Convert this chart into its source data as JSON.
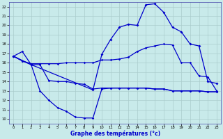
{
  "xlabel": "Graphe des températures (°c)",
  "bg_color": "#c8eaea",
  "grid_color": "#aacccc",
  "line_color": "#0000cc",
  "xlim": [
    -0.5,
    23.5
  ],
  "ylim": [
    9.5,
    22.5
  ],
  "yticks": [
    10,
    11,
    12,
    13,
    14,
    15,
    16,
    17,
    18,
    19,
    20,
    21,
    22
  ],
  "xticks": [
    0,
    1,
    2,
    3,
    4,
    5,
    6,
    7,
    8,
    9,
    10,
    11,
    12,
    13,
    14,
    15,
    16,
    17,
    18,
    19,
    20,
    21,
    22,
    23
  ],
  "line1_x": [
    0,
    1,
    2,
    3,
    4,
    5,
    6,
    7,
    8,
    9,
    10,
    11,
    12,
    13,
    14,
    15,
    16,
    17,
    18,
    19,
    20,
    21,
    22,
    23
  ],
  "line1_y": [
    16.7,
    17.2,
    15.8,
    13.0,
    12.0,
    11.2,
    10.8,
    10.2,
    10.1,
    10.1,
    13.2,
    13.3,
    13.3,
    13.3,
    13.3,
    13.3,
    13.2,
    13.2,
    13.0,
    13.0,
    13.0,
    13.0,
    12.9,
    12.9
  ],
  "line2_x": [
    0,
    1,
    2,
    3,
    4,
    5,
    6,
    7,
    8,
    9,
    10,
    11,
    12,
    13,
    14,
    15,
    16,
    17,
    18,
    19,
    20,
    21,
    22,
    23
  ],
  "line2_y": [
    16.7,
    16.2,
    15.8,
    15.8,
    14.1,
    14.0,
    14.0,
    13.8,
    13.7,
    13.2,
    13.3,
    13.3,
    13.3,
    13.3,
    13.3,
    13.3,
    13.2,
    13.2,
    13.0,
    13.0,
    13.0,
    13.0,
    12.9,
    12.9
  ],
  "line3_x": [
    0,
    1,
    2,
    3,
    4,
    5,
    6,
    7,
    8,
    9,
    10,
    11,
    12,
    13,
    14,
    15,
    16,
    17,
    18,
    19,
    20,
    21,
    22,
    23
  ],
  "line3_y": [
    16.7,
    16.2,
    15.9,
    15.9,
    15.9,
    15.9,
    16.0,
    16.0,
    16.0,
    16.0,
    16.3,
    16.3,
    16.4,
    16.6,
    17.2,
    17.6,
    17.8,
    18.0,
    17.9,
    16.0,
    16.0,
    14.6,
    14.5,
    13.0
  ],
  "line4_x": [
    0,
    2,
    9,
    10,
    11,
    12,
    13,
    14,
    15,
    16,
    17,
    18,
    19,
    20,
    21,
    22,
    23
  ],
  "line4_y": [
    16.7,
    15.8,
    13.1,
    16.9,
    18.5,
    19.8,
    20.1,
    20.0,
    22.2,
    22.3,
    21.4,
    19.8,
    19.3,
    18.0,
    17.8,
    14.0,
    13.8
  ]
}
